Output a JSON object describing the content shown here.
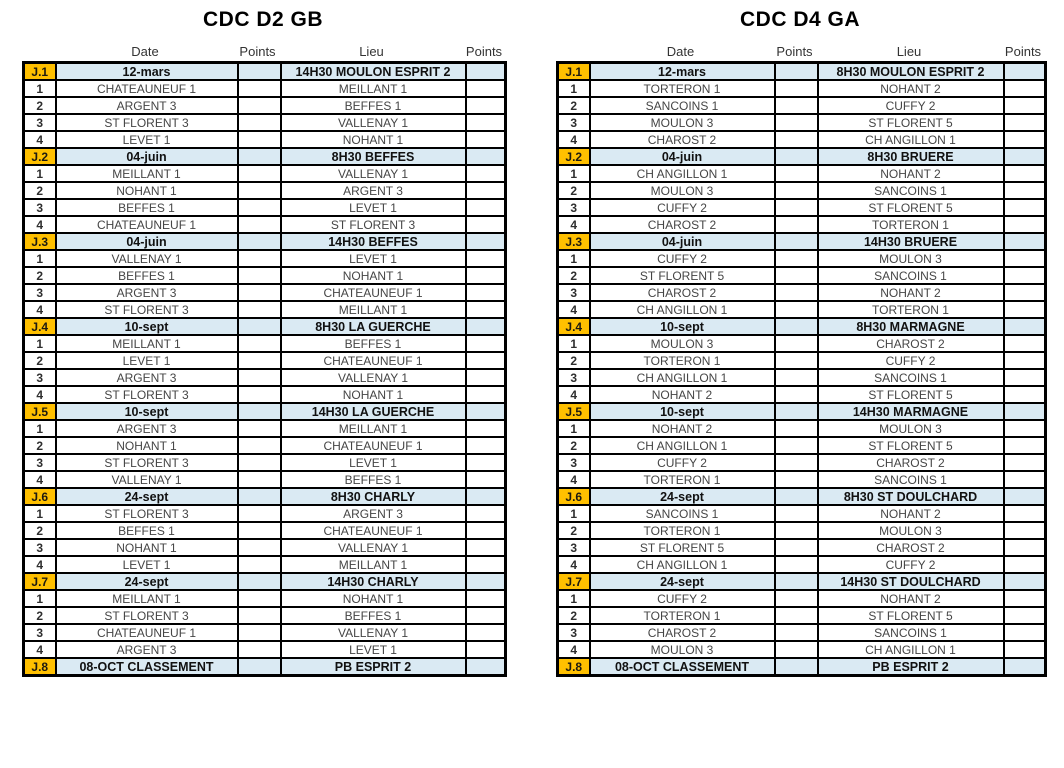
{
  "colors": {
    "accent_orange": "#FFC000",
    "band_blue": "#DAEAF3",
    "grid_black": "#000000",
    "team_text": "#454545"
  },
  "tables": [
    {
      "title": "CDC D2 GB",
      "columns": {
        "date": "Date",
        "points1": "Points",
        "lieu": "Lieu",
        "points2": "Points"
      },
      "groups": [
        {
          "label": "J.1",
          "date": "12-mars",
          "lieu": "14H30 MOULON ESPRIT 2",
          "rows": [
            {
              "num": "1",
              "date": "CHATEAUNEUF 1",
              "lieu": "MEILLANT 1"
            },
            {
              "num": "2",
              "date": "ARGENT 3",
              "lieu": "BEFFES 1"
            },
            {
              "num": "3",
              "date": "ST FLORENT 3",
              "lieu": "VALLENAY 1"
            },
            {
              "num": "4",
              "date": "LEVET 1",
              "lieu": "NOHANT 1"
            }
          ]
        },
        {
          "label": "J.2",
          "date": "04-juin",
          "lieu": "8H30 BEFFES",
          "rows": [
            {
              "num": "1",
              "date": "MEILLANT 1",
              "lieu": "VALLENAY 1"
            },
            {
              "num": "2",
              "date": "NOHANT 1",
              "lieu": "ARGENT 3"
            },
            {
              "num": "3",
              "date": "BEFFES 1",
              "lieu": "LEVET 1"
            },
            {
              "num": "4",
              "date": "CHATEAUNEUF 1",
              "lieu": "ST FLORENT 3"
            }
          ]
        },
        {
          "label": "J.3",
          "date": "04-juin",
          "lieu": "14H30  BEFFES",
          "rows": [
            {
              "num": "1",
              "date": "VALLENAY 1",
              "lieu": "LEVET 1"
            },
            {
              "num": "2",
              "date": "BEFFES 1",
              "lieu": "NOHANT 1"
            },
            {
              "num": "3",
              "date": "ARGENT 3",
              "lieu": "CHATEAUNEUF 1"
            },
            {
              "num": "4",
              "date": "ST FLORENT 3",
              "lieu": "MEILLANT 1"
            }
          ]
        },
        {
          "label": "J.4",
          "date": "10-sept",
          "lieu": "8H30  LA GUERCHE",
          "rows": [
            {
              "num": "1",
              "date": "MEILLANT 1",
              "lieu": "BEFFES 1"
            },
            {
              "num": "2",
              "date": "LEVET 1",
              "lieu": "CHATEAUNEUF 1"
            },
            {
              "num": "3",
              "date": "ARGENT 3",
              "lieu": "VALLENAY 1"
            },
            {
              "num": "4",
              "date": "ST FLORENT 3",
              "lieu": "NOHANT 1"
            }
          ]
        },
        {
          "label": "J.5",
          "date": "10-sept",
          "lieu": "14H30 LA GUERCHE",
          "rows": [
            {
              "num": "1",
              "date": "ARGENT 3",
              "lieu": "MEILLANT 1"
            },
            {
              "num": "2",
              "date": "NOHANT 1",
              "lieu": "CHATEAUNEUF 1"
            },
            {
              "num": "3",
              "date": "ST FLORENT 3",
              "lieu": "LEVET 1"
            },
            {
              "num": "4",
              "date": "VALLENAY 1",
              "lieu": "BEFFES 1"
            }
          ]
        },
        {
          "label": "J.6",
          "date": "24-sept",
          "lieu": "8H30  CHARLY",
          "rows": [
            {
              "num": "1",
              "date": "ST FLORENT 3",
              "lieu": "ARGENT 3"
            },
            {
              "num": "2",
              "date": "BEFFES 1",
              "lieu": "CHATEAUNEUF 1"
            },
            {
              "num": "3",
              "date": "NOHANT 1",
              "lieu": "VALLENAY 1"
            },
            {
              "num": "4",
              "date": "LEVET 1",
              "lieu": "MEILLANT 1"
            }
          ]
        },
        {
          "label": "J.7",
          "date": "24-sept",
          "lieu": "14H30 CHARLY",
          "rows": [
            {
              "num": "1",
              "date": "MEILLANT 1",
              "lieu": "NOHANT 1"
            },
            {
              "num": "2",
              "date": "ST FLORENT 3",
              "lieu": "BEFFES 1"
            },
            {
              "num": "3",
              "date": "CHATEAUNEUF 1",
              "lieu": "VALLENAY 1"
            },
            {
              "num": "4",
              "date": "ARGENT 3",
              "lieu": "LEVET 1"
            }
          ]
        },
        {
          "label": "J.8",
          "date": "08-OCT CLASSEMENT",
          "lieu": "PB ESPRIT 2",
          "rows": []
        }
      ]
    },
    {
      "title": "CDC D4 GA",
      "columns": {
        "date": "Date",
        "points1": "Points",
        "lieu": "Lieu",
        "points2": "Points"
      },
      "groups": [
        {
          "label": "J.1",
          "date": "12-mars",
          "lieu": "8H30 MOULON ESPRIT 2",
          "rows": [
            {
              "num": "1",
              "date": "TORTERON 1",
              "lieu": "NOHANT 2"
            },
            {
              "num": "2",
              "date": "SANCOINS 1",
              "lieu": "CUFFY 2"
            },
            {
              "num": "3",
              "date": "MOULON 3",
              "lieu": "ST FLORENT 5"
            },
            {
              "num": "4",
              "date": "CHAROST 2",
              "lieu": "CH ANGILLON 1"
            }
          ]
        },
        {
          "label": "J.2",
          "date": "04-juin",
          "lieu": "8H30 BRUERE",
          "rows": [
            {
              "num": "1",
              "date": "CH ANGILLON 1",
              "lieu": "NOHANT 2"
            },
            {
              "num": "2",
              "date": "MOULON 3",
              "lieu": "SANCOINS 1"
            },
            {
              "num": "3",
              "date": "CUFFY 2",
              "lieu": "ST FLORENT 5"
            },
            {
              "num": "4",
              "date": "CHAROST 2",
              "lieu": "TORTERON 1"
            }
          ]
        },
        {
          "label": "J.3",
          "date": "04-juin",
          "lieu": "14H30 BRUERE",
          "rows": [
            {
              "num": "1",
              "date": "CUFFY 2",
              "lieu": "MOULON 3"
            },
            {
              "num": "2",
              "date": "ST FLORENT 5",
              "lieu": "SANCOINS 1"
            },
            {
              "num": "3",
              "date": "CHAROST 2",
              "lieu": "NOHANT 2"
            },
            {
              "num": "4",
              "date": "CH ANGILLON 1",
              "lieu": "TORTERON 1"
            }
          ]
        },
        {
          "label": "J.4",
          "date": "10-sept",
          "lieu": "8H30 MARMAGNE",
          "rows": [
            {
              "num": "1",
              "date": "MOULON 3",
              "lieu": "CHAROST 2"
            },
            {
              "num": "2",
              "date": "TORTERON 1",
              "lieu": "CUFFY 2"
            },
            {
              "num": "3",
              "date": "CH ANGILLON 1",
              "lieu": "SANCOINS 1"
            },
            {
              "num": "4",
              "date": "NOHANT 2",
              "lieu": "ST FLORENT 5"
            }
          ]
        },
        {
          "label": "J.5",
          "date": "10-sept",
          "lieu": "14H30 MARMAGNE",
          "rows": [
            {
              "num": "1",
              "date": "NOHANT 2",
              "lieu": "MOULON 3"
            },
            {
              "num": "2",
              "date": "CH ANGILLON 1",
              "lieu": "ST FLORENT 5"
            },
            {
              "num": "3",
              "date": "CUFFY 2",
              "lieu": "CHAROST 2"
            },
            {
              "num": "4",
              "date": "TORTERON 1",
              "lieu": "SANCOINS 1"
            }
          ]
        },
        {
          "label": "J.6",
          "date": "24-sept",
          "lieu": "8H30 ST DOULCHARD",
          "rows": [
            {
              "num": "1",
              "date": "SANCOINS 1",
              "lieu": "NOHANT 2"
            },
            {
              "num": "2",
              "date": "TORTERON 1",
              "lieu": "MOULON 3"
            },
            {
              "num": "3",
              "date": "ST FLORENT 5",
              "lieu": "CHAROST 2"
            },
            {
              "num": "4",
              "date": "CH ANGILLON 1",
              "lieu": "CUFFY 2"
            }
          ]
        },
        {
          "label": "J.7",
          "date": "24-sept",
          "lieu": "14H30 ST DOULCHARD",
          "rows": [
            {
              "num": "1",
              "date": "CUFFY 2",
              "lieu": "NOHANT 2"
            },
            {
              "num": "2",
              "date": "TORTERON 1",
              "lieu": "ST FLORENT 5"
            },
            {
              "num": "3",
              "date": "CHAROST 2",
              "lieu": "SANCOINS 1"
            },
            {
              "num": "4",
              "date": "MOULON 3",
              "lieu": "CH ANGILLON 1"
            }
          ]
        },
        {
          "label": "J.8",
          "date": "08-OCT CLASSEMENT",
          "lieu": "PB ESPRIT 2",
          "rows": []
        }
      ]
    }
  ]
}
